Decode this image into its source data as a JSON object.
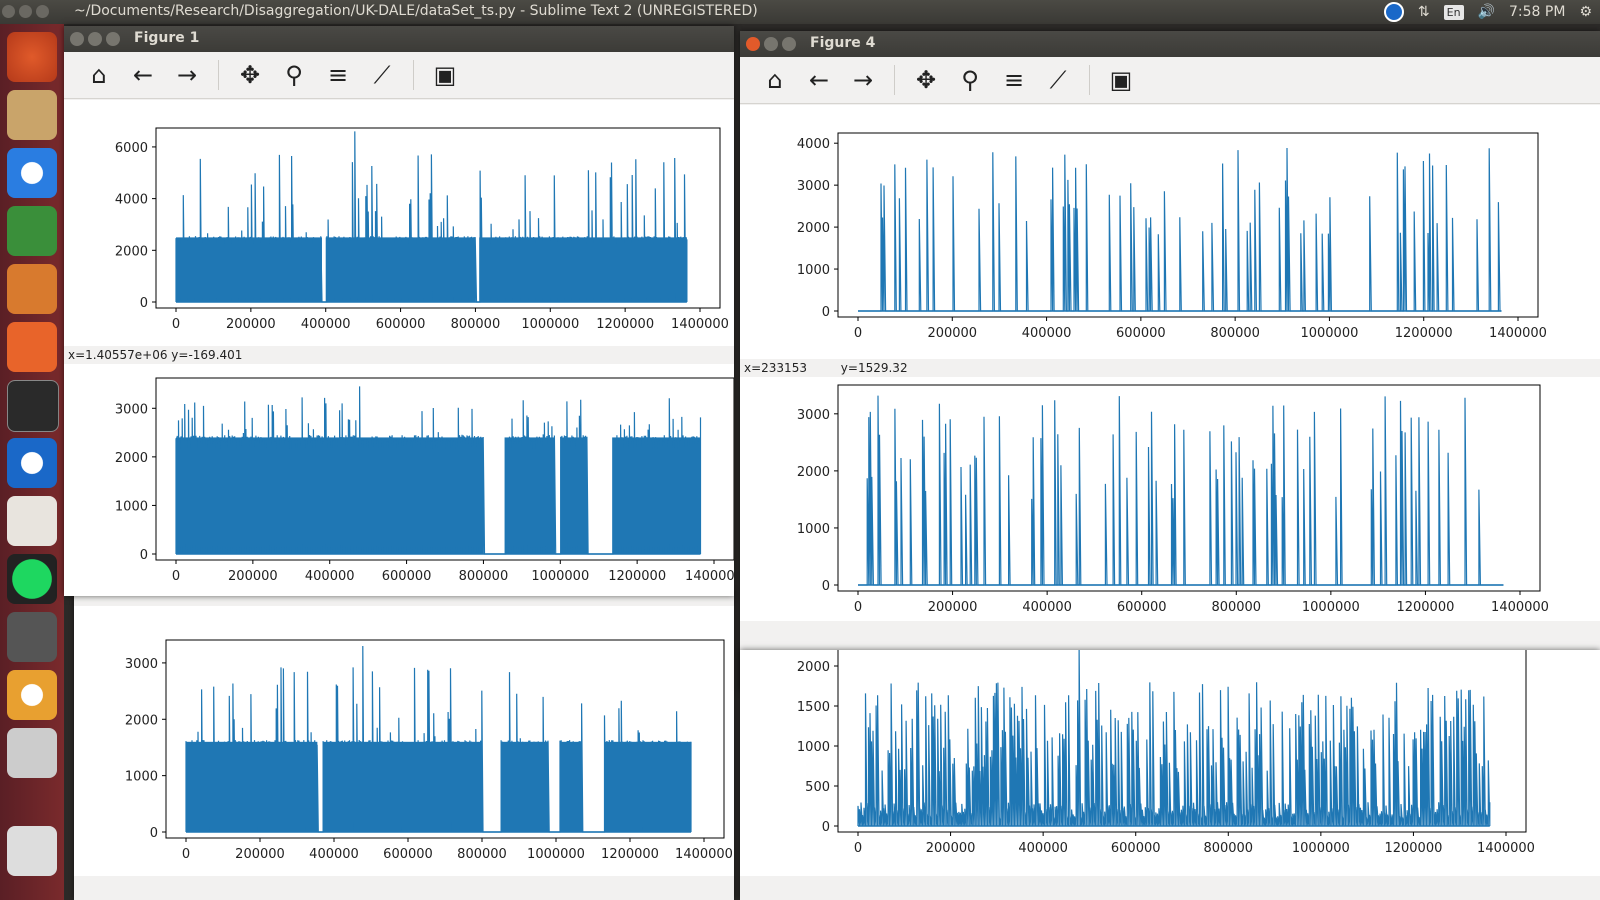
{
  "topbar": {
    "title": "~/Documents/Research/Disaggregation/UK-DALE/dataSet_ts.py - Sublime Text 2 (UNREGISTERED)",
    "lang": "En",
    "clock": "7:58 PM"
  },
  "figure1": {
    "title": "Figure 1",
    "status": "x=1.40557e+06  y=-169.401"
  },
  "figure4": {
    "title": "Figure 4",
    "status_x": "x=233153",
    "status_y": "y=1529.32"
  },
  "toolbar_icons": [
    "home-icon",
    "back-arrow-icon",
    "forward-arrow-icon",
    "pan-icon",
    "zoom-icon",
    "subplots-icon",
    "edit-axis-icon",
    "save-icon"
  ],
  "colors": {
    "series": "#1f77b4",
    "titlebar": "#3c3b37",
    "launcher": "#6b2329"
  },
  "chart_data": [
    {
      "type": "line",
      "series": "figure1-top",
      "xlim": [
        0,
        1400000
      ],
      "ylim": [
        0,
        6500
      ],
      "x_ticks": [
        "0",
        "200000",
        "400000",
        "600000",
        "800000",
        "1000000",
        "1200000",
        "1400000"
      ],
      "y_ticks": [
        "0",
        "2000",
        "4000",
        "6000"
      ],
      "y_tick_values": [
        0,
        2000,
        4000,
        6000
      ],
      "baseline": 2500,
      "max_peak": 6600,
      "gaps": [
        [
          390000,
          400000
        ],
        [
          800000,
          810000
        ]
      ]
    },
    {
      "type": "line",
      "series": "figure1-middle",
      "xlim": [
        0,
        1400000
      ],
      "ylim": [
        0,
        3500
      ],
      "x_ticks": [
        "0",
        "200000",
        "400000",
        "600000",
        "800000",
        "1000000",
        "1200000",
        "1400000"
      ],
      "y_ticks": [
        "0",
        "1000",
        "2000",
        "3000"
      ],
      "y_tick_values": [
        0,
        1000,
        2000,
        3000
      ],
      "baseline": 2400,
      "max_peak": 3450,
      "gaps": [
        [
          800000,
          855000
        ],
        [
          985000,
          1000000
        ],
        [
          1070000,
          1135000
        ]
      ]
    },
    {
      "type": "line",
      "series": "figure-bottom-left",
      "xlim": [
        0,
        1400000
      ],
      "ylim": [
        0,
        3300
      ],
      "x_ticks": [
        "0",
        "200000",
        "400000",
        "600000",
        "800000",
        "1000000",
        "1200000",
        "1400000"
      ],
      "y_ticks": [
        "0",
        "1000",
        "2000",
        "3000"
      ],
      "y_tick_values": [
        0,
        1000,
        2000,
        3000
      ],
      "baseline": 1600,
      "max_peak": 3300,
      "gaps": [
        [
          355000,
          370000
        ],
        [
          800000,
          850000
        ],
        [
          980000,
          1010000
        ],
        [
          1070000,
          1130000
        ]
      ]
    },
    {
      "type": "line",
      "series": "figure4-top",
      "xlim": [
        0,
        1400000
      ],
      "ylim": [
        0,
        4100
      ],
      "x_ticks": [
        "0",
        "200000",
        "400000",
        "600000",
        "800000",
        "1000000",
        "1200000",
        "1400000"
      ],
      "y_ticks": [
        "0",
        "1000",
        "2000",
        "3000",
        "4000"
      ],
      "y_tick_values": [
        0,
        1000,
        2000,
        3000,
        4000
      ],
      "baseline": 0,
      "max_peak": 4000,
      "spiky": true
    },
    {
      "type": "line",
      "series": "figure4-middle",
      "xlim": [
        0,
        1400000
      ],
      "ylim": [
        0,
        3400
      ],
      "x_ticks": [
        "0",
        "200000",
        "400000",
        "600000",
        "800000",
        "1000000",
        "1200000",
        "1400000"
      ],
      "y_ticks": [
        "0",
        "1000",
        "2000",
        "3000"
      ],
      "y_tick_values": [
        0,
        1000,
        2000,
        3000
      ],
      "baseline": 0,
      "max_peak": 3350,
      "spiky": true
    },
    {
      "type": "line",
      "series": "figure4-bottom",
      "xlim": [
        0,
        1400000
      ],
      "ylim": [
        0,
        2250
      ],
      "x_ticks": [
        "0",
        "200000",
        "400000",
        "600000",
        "800000",
        "1000000",
        "1200000",
        "1400000"
      ],
      "y_ticks": [
        "0",
        "500",
        "1000",
        "1500",
        "2000"
      ],
      "y_tick_values": [
        0,
        500,
        1000,
        1500,
        2000
      ],
      "baseline": 200,
      "max_peak": 2250,
      "dense": true
    }
  ]
}
